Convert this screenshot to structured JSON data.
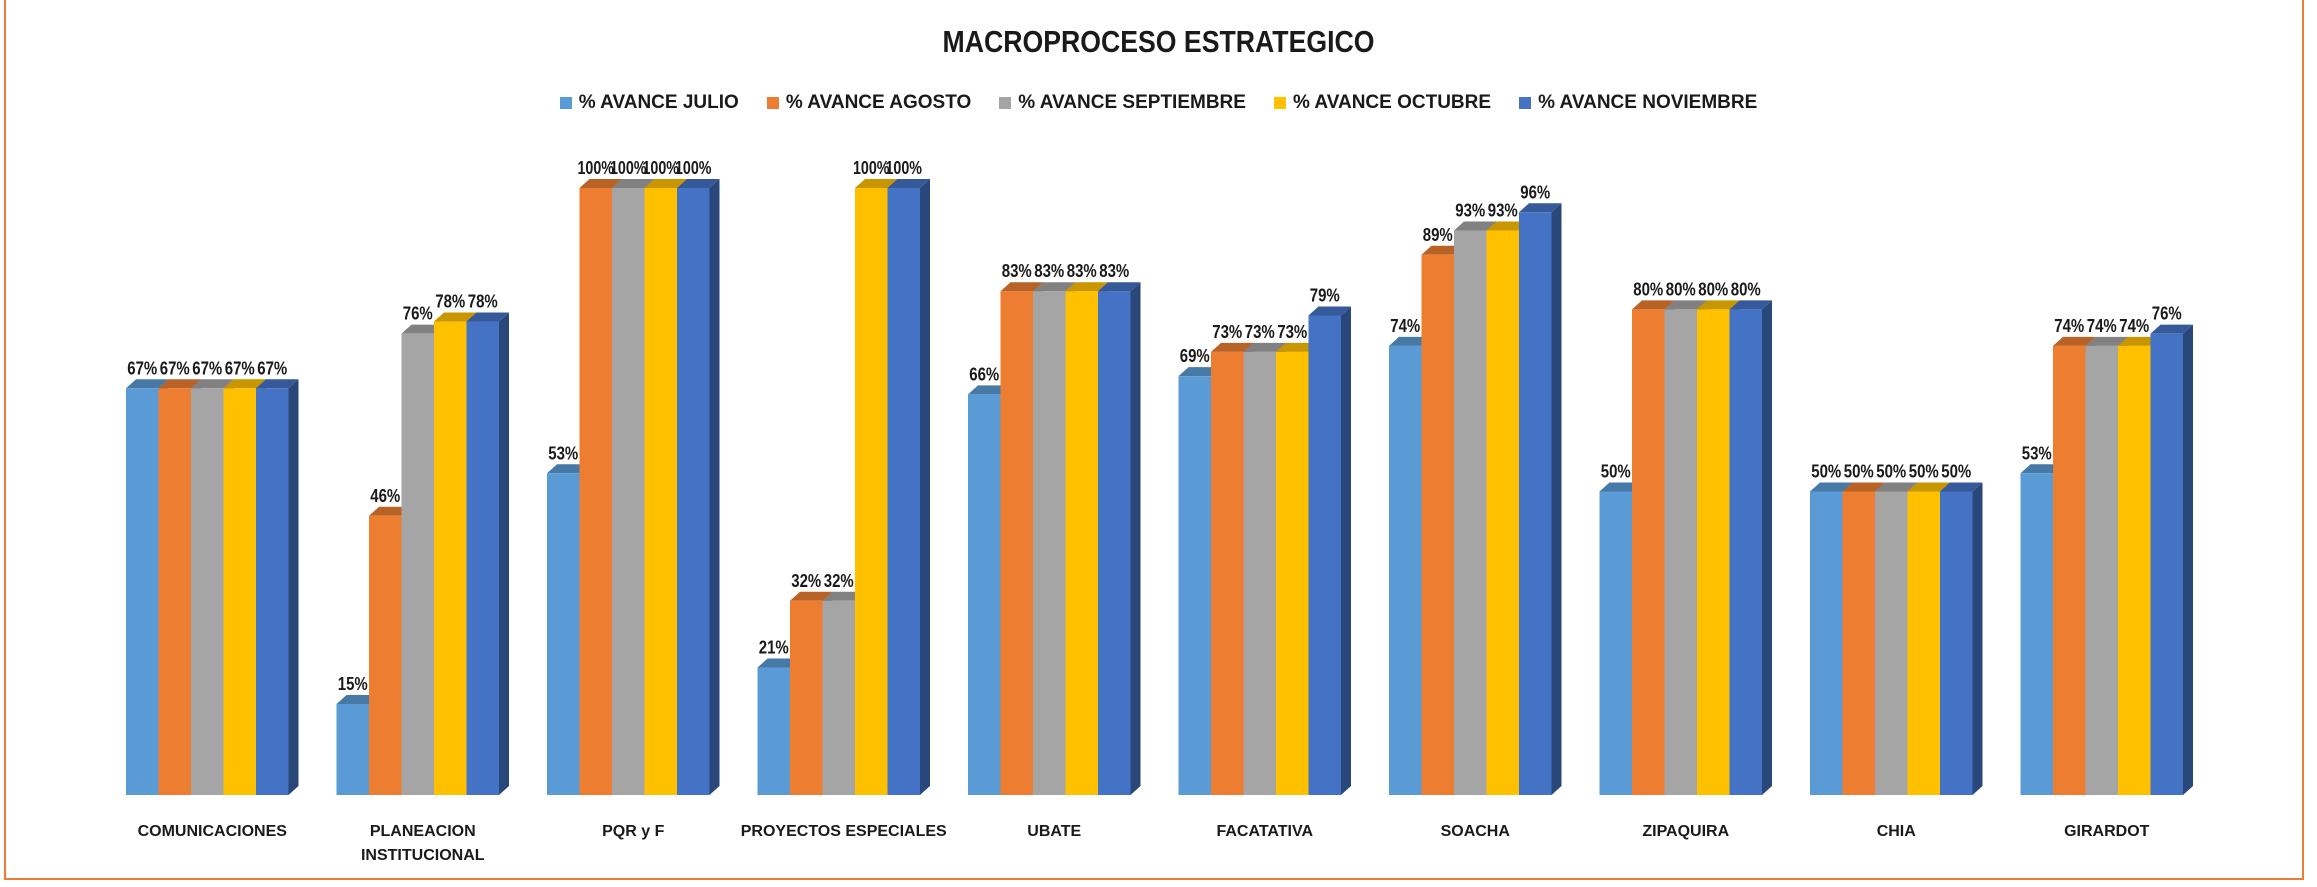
{
  "chart_data": {
    "type": "bar",
    "title": "MACROPROCESO ESTRATEGICO",
    "xlabel": "",
    "ylabel": "",
    "ylim": [
      0,
      100
    ],
    "grid": false,
    "legend_position": "top",
    "categories": [
      [
        "COMUNICACIONES"
      ],
      [
        "PLANEACION",
        "INSTITUCIONAL"
      ],
      [
        "PQR y F"
      ],
      [
        "PROYECTOS ESPECIALES"
      ],
      [
        "UBATE"
      ],
      [
        "FACATATIVA"
      ],
      [
        "SOACHA"
      ],
      [
        "ZIPAQUIRA"
      ],
      [
        "CHIA"
      ],
      [
        "GIRARDOT"
      ]
    ],
    "series": [
      {
        "name": "% AVANCE JULIO",
        "color": "#5B9BD5",
        "values": [
          67,
          15,
          53,
          21,
          66,
          69,
          74,
          50,
          50,
          53
        ],
        "labels": [
          "67%",
          "15%",
          "53%",
          "21%",
          "66%",
          "69%",
          "74%",
          "50%",
          "50%",
          "53%"
        ]
      },
      {
        "name": "% AVANCE AGOSTO",
        "color": "#ED7D31",
        "values": [
          67,
          46,
          100,
          32,
          83,
          73,
          89,
          80,
          50,
          74
        ],
        "labels": [
          "67%",
          "46%",
          "100%",
          "32%",
          "83%",
          "73%",
          "89%",
          "80%",
          "50%",
          "74%"
        ]
      },
      {
        "name": "% AVANCE SEPTIEMBRE",
        "color": "#A5A5A5",
        "values": [
          67,
          76,
          100,
          32,
          83,
          73,
          93,
          80,
          50,
          74
        ],
        "labels": [
          "67%",
          "76%",
          "100%",
          "32%",
          "83%",
          "73%",
          "93%",
          "80%",
          "50%",
          "74%"
        ]
      },
      {
        "name": "% AVANCE OCTUBRE",
        "color": "#FFC000",
        "values": [
          67,
          78,
          100,
          100,
          83,
          73,
          93,
          80,
          50,
          74
        ],
        "labels": [
          "67%",
          "78%",
          "100%",
          "100%",
          "83%",
          "73%",
          "93%",
          "80%",
          "50%",
          "74%"
        ]
      },
      {
        "name": "% AVANCE NOVIEMBRE",
        "color": "#4472C4",
        "values": [
          67,
          78,
          100,
          100,
          83,
          79,
          96,
          80,
          50,
          76
        ],
        "labels": [
          "67%",
          "78%",
          "100%",
          "100%",
          "83%",
          "79%",
          "96%",
          "80%",
          "50%",
          "76%"
        ]
      }
    ]
  }
}
